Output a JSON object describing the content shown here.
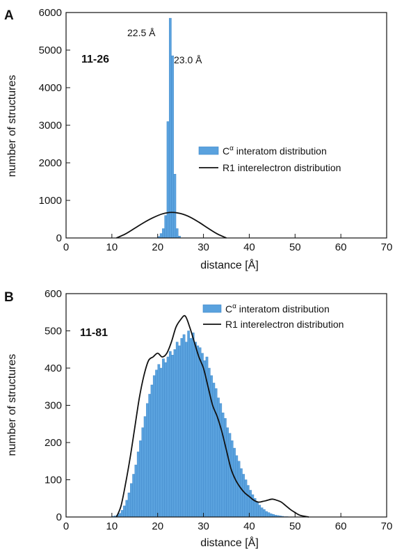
{
  "colors": {
    "bar": "#5aa2de",
    "bar_edge": "#3d86c8",
    "line": "#111111",
    "axis": "#111111"
  },
  "chart_data": [
    {
      "type": "bar",
      "panel_label": "A",
      "pair_label": "11-26",
      "xlabel": "distance [Å]",
      "ylabel": "number of structures",
      "xlim": [
        0,
        70
      ],
      "ylim": [
        0,
        6000
      ],
      "xticks": [
        "0",
        "10",
        "20",
        "30",
        "40",
        "50",
        "60",
        "70"
      ],
      "yticks": [
        "0",
        "1000",
        "2000",
        "3000",
        "4000",
        "5000",
        "6000"
      ],
      "annotations": [
        {
          "text": "22.5 Å",
          "x": 22.5,
          "y": 5850
        },
        {
          "text": "23.0 Å",
          "x": 23.0,
          "y": 4850
        }
      ],
      "legend": {
        "position": "center-right",
        "entries": [
          "interatom distribution",
          "R1 interelectron distribution"
        ],
        "superscript_prefix": "C",
        "superscript": "α"
      },
      "bin_width": 0.5,
      "bars": [
        {
          "x": 20.0,
          "y": 40
        },
        {
          "x": 20.5,
          "y": 120
        },
        {
          "x": 21.0,
          "y": 250
        },
        {
          "x": 21.5,
          "y": 600
        },
        {
          "x": 22.0,
          "y": 3100
        },
        {
          "x": 22.5,
          "y": 5850
        },
        {
          "x": 23.0,
          "y": 4850
        },
        {
          "x": 23.5,
          "y": 1700
        },
        {
          "x": 24.0,
          "y": 250
        },
        {
          "x": 24.5,
          "y": 50
        }
      ],
      "curve": {
        "x": [
          11,
          13,
          15,
          17,
          19,
          21,
          23,
          25,
          27,
          29,
          31,
          33,
          35
        ],
        "y": [
          0,
          110,
          260,
          410,
          540,
          640,
          680,
          650,
          560,
          420,
          260,
          110,
          0
        ]
      }
    },
    {
      "type": "bar",
      "panel_label": "B",
      "pair_label": "11-81",
      "xlabel": "distance [Å]",
      "ylabel": "number of structures",
      "xlim": [
        0,
        70
      ],
      "ylim": [
        0,
        600
      ],
      "xticks": [
        "0",
        "10",
        "20",
        "30",
        "40",
        "50",
        "60",
        "70"
      ],
      "yticks": [
        "0",
        "100",
        "200",
        "300",
        "400",
        "500",
        "600"
      ],
      "annotations": [],
      "legend": {
        "position": "top-right",
        "entries": [
          "interatom distribution",
          "R1 interelectron distribution"
        ],
        "superscript_prefix": "C",
        "superscript": "α"
      },
      "bin_width": 0.5,
      "bars": [
        {
          "x": 10.0,
          "y": 2
        },
        {
          "x": 10.5,
          "y": 3
        },
        {
          "x": 11.0,
          "y": 5
        },
        {
          "x": 11.5,
          "y": 10
        },
        {
          "x": 12.0,
          "y": 18
        },
        {
          "x": 12.5,
          "y": 30
        },
        {
          "x": 13.0,
          "y": 45
        },
        {
          "x": 13.5,
          "y": 65
        },
        {
          "x": 14.0,
          "y": 90
        },
        {
          "x": 14.5,
          "y": 115
        },
        {
          "x": 15.0,
          "y": 140
        },
        {
          "x": 15.5,
          "y": 175
        },
        {
          "x": 16.0,
          "y": 205
        },
        {
          "x": 16.5,
          "y": 240
        },
        {
          "x": 17.0,
          "y": 270
        },
        {
          "x": 17.5,
          "y": 305
        },
        {
          "x": 18.0,
          "y": 330
        },
        {
          "x": 18.5,
          "y": 355
        },
        {
          "x": 19.0,
          "y": 380
        },
        {
          "x": 19.5,
          "y": 395
        },
        {
          "x": 20.0,
          "y": 410
        },
        {
          "x": 20.5,
          "y": 400
        },
        {
          "x": 21.0,
          "y": 425
        },
        {
          "x": 21.5,
          "y": 415
        },
        {
          "x": 22.0,
          "y": 430
        },
        {
          "x": 22.5,
          "y": 445
        },
        {
          "x": 23.0,
          "y": 435
        },
        {
          "x": 23.5,
          "y": 450
        },
        {
          "x": 24.0,
          "y": 470
        },
        {
          "x": 24.5,
          "y": 460
        },
        {
          "x": 25.0,
          "y": 480
        },
        {
          "x": 25.5,
          "y": 490
        },
        {
          "x": 26.0,
          "y": 470
        },
        {
          "x": 26.5,
          "y": 500
        },
        {
          "x": 27.0,
          "y": 480
        },
        {
          "x": 27.5,
          "y": 495
        },
        {
          "x": 28.0,
          "y": 470
        },
        {
          "x": 28.5,
          "y": 460
        },
        {
          "x": 29.0,
          "y": 455
        },
        {
          "x": 29.5,
          "y": 440
        },
        {
          "x": 30.0,
          "y": 420
        },
        {
          "x": 30.5,
          "y": 430
        },
        {
          "x": 31.0,
          "y": 400
        },
        {
          "x": 31.5,
          "y": 380
        },
        {
          "x": 32.0,
          "y": 360
        },
        {
          "x": 32.5,
          "y": 345
        },
        {
          "x": 33.0,
          "y": 320
        },
        {
          "x": 33.5,
          "y": 305
        },
        {
          "x": 34.0,
          "y": 280
        },
        {
          "x": 34.5,
          "y": 265
        },
        {
          "x": 35.0,
          "y": 240
        },
        {
          "x": 35.5,
          "y": 225
        },
        {
          "x": 36.0,
          "y": 205
        },
        {
          "x": 36.5,
          "y": 185
        },
        {
          "x": 37.0,
          "y": 165
        },
        {
          "x": 37.5,
          "y": 150
        },
        {
          "x": 38.0,
          "y": 130
        },
        {
          "x": 38.5,
          "y": 115
        },
        {
          "x": 39.0,
          "y": 100
        },
        {
          "x": 39.5,
          "y": 85
        },
        {
          "x": 40.0,
          "y": 72
        },
        {
          "x": 40.5,
          "y": 60
        },
        {
          "x": 41.0,
          "y": 50
        },
        {
          "x": 41.5,
          "y": 40
        },
        {
          "x": 42.0,
          "y": 32
        },
        {
          "x": 42.5,
          "y": 25
        },
        {
          "x": 43.0,
          "y": 20
        },
        {
          "x": 43.5,
          "y": 15
        },
        {
          "x": 44.0,
          "y": 12
        },
        {
          "x": 44.5,
          "y": 9
        },
        {
          "x": 45.0,
          "y": 7
        },
        {
          "x": 45.5,
          "y": 5
        },
        {
          "x": 46.0,
          "y": 4
        },
        {
          "x": 46.5,
          "y": 3
        },
        {
          "x": 47.0,
          "y": 2
        },
        {
          "x": 47.5,
          "y": 1
        },
        {
          "x": 48.0,
          "y": 1
        }
      ],
      "curve": {
        "x": [
          11,
          12,
          13,
          14,
          15,
          16,
          17,
          18,
          19,
          20,
          21,
          22,
          23,
          24,
          25,
          26,
          27,
          28,
          29,
          30,
          31,
          32,
          33,
          34,
          35,
          36,
          37,
          38,
          39,
          40,
          41,
          42,
          43,
          44,
          45,
          46,
          47,
          48,
          49,
          50,
          51,
          52,
          53
        ],
        "y": [
          0,
          30,
          90,
          160,
          240,
          320,
          380,
          420,
          430,
          440,
          430,
          440,
          470,
          510,
          530,
          540,
          510,
          470,
          430,
          400,
          350,
          300,
          270,
          230,
          180,
          130,
          100,
          80,
          65,
          55,
          45,
          40,
          42,
          45,
          48,
          45,
          40,
          30,
          20,
          12,
          5,
          2,
          0
        ]
      }
    }
  ]
}
